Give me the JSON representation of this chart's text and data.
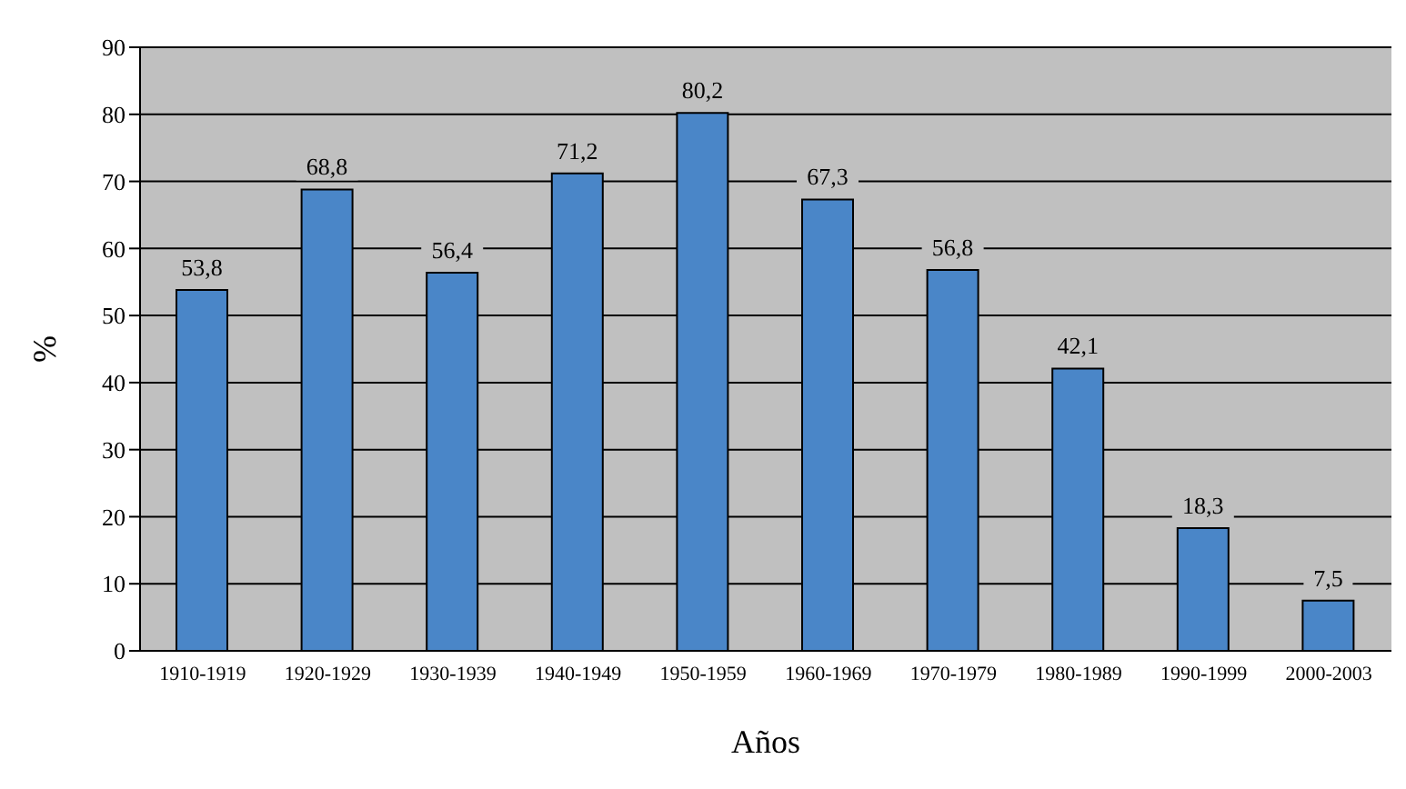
{
  "chart_data": {
    "type": "bar",
    "xlabel": "Años",
    "ylabel": "%",
    "categories": [
      "1910-1919",
      "1920-1929",
      "1930-1939",
      "1940-1949",
      "1950-1959",
      "1960-1969",
      "1970-1979",
      "1980-1989",
      "1990-1999",
      "2000-2003"
    ],
    "values": [
      53.8,
      68.8,
      56.4,
      71.2,
      80.2,
      67.3,
      56.8,
      42.1,
      18.3,
      7.5
    ],
    "value_labels": [
      "53,8",
      "68,8",
      "56,4",
      "71,2",
      "80,2",
      "67,3",
      "56,8",
      "42,1",
      "18,3",
      "7,5"
    ],
    "color": "#4a86c8",
    "ylim": [
      0,
      90
    ],
    "yticks": [
      0,
      10,
      20,
      30,
      40,
      50,
      60,
      70,
      80,
      90
    ],
    "grid": "y"
  }
}
